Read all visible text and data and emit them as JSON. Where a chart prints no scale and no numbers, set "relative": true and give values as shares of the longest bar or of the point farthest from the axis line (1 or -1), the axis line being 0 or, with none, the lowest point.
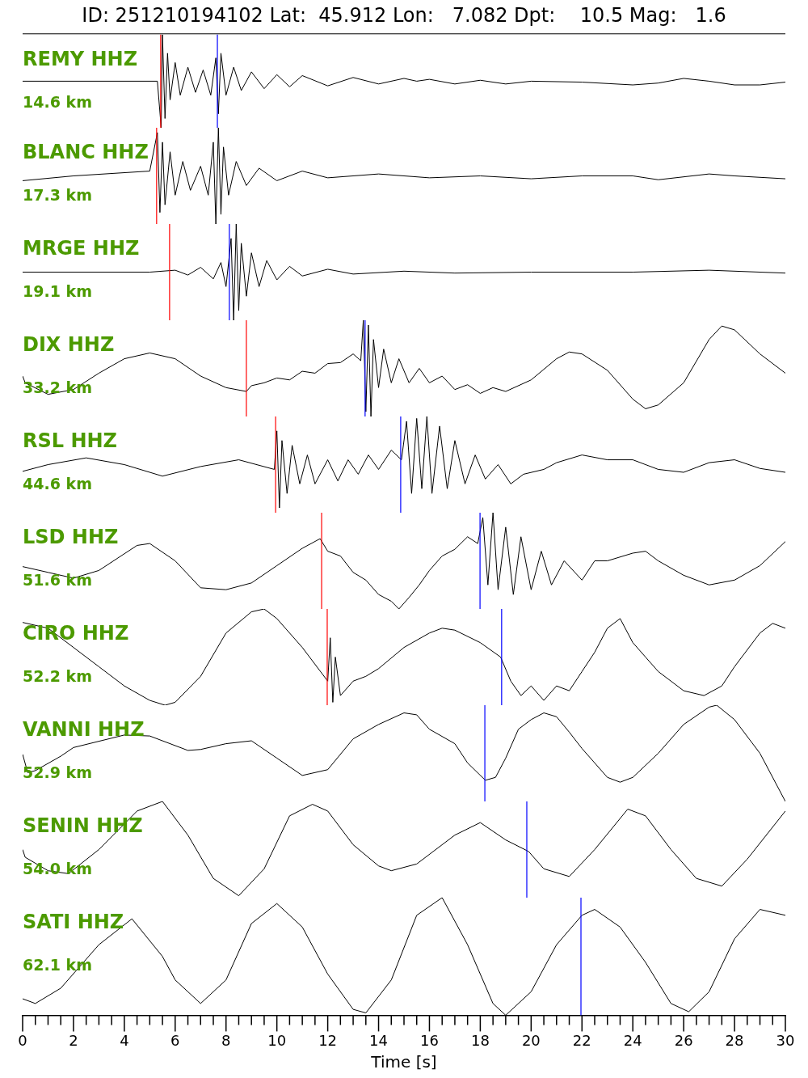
{
  "chart_data": [
    {
      "type": "line",
      "title": "ID: 251210194102 Lat:  45.912 Lon:   7.082 Dpt:    10.5 Mag:   1.6",
      "relative": true,
      "xlim": [
        0,
        30
      ],
      "tick_labels": false,
      "annotations": [
        "REMY HHZ",
        "14.6 km"
      ],
      "ref_lines": [
        {
          "axis": "x",
          "value": 5.43,
          "color": "#ff0000"
        },
        {
          "axis": "x",
          "value": 7.66,
          "color": "#0000ff"
        }
      ],
      "series": [
        {
          "color": "#000000",
          "x": [
            0,
            5.3,
            5.45,
            5.5,
            5.6,
            5.7,
            5.8,
            6.0,
            6.2,
            6.5,
            6.8,
            7.1,
            7.4,
            7.6,
            7.7,
            7.8,
            8.0,
            8.3,
            8.6,
            9.0,
            9.5,
            10,
            10.5,
            11,
            12,
            13,
            14,
            15,
            15.5,
            16,
            17,
            18,
            19,
            20,
            22,
            24,
            25,
            26,
            27,
            28,
            29,
            30
          ],
          "values": [
            0.5,
            0.5,
            0.0,
            1.0,
            0.1,
            0.8,
            0.3,
            0.7,
            0.35,
            0.65,
            0.38,
            0.62,
            0.35,
            0.75,
            0.15,
            0.8,
            0.35,
            0.65,
            0.4,
            0.6,
            0.42,
            0.57,
            0.44,
            0.56,
            0.45,
            0.54,
            0.47,
            0.53,
            0.5,
            0.52,
            0.47,
            0.51,
            0.47,
            0.5,
            0.49,
            0.46,
            0.48,
            0.53,
            0.5,
            0.46,
            0.46,
            0.49
          ]
        }
      ]
    },
    {
      "type": "line",
      "relative": true,
      "xlim": [
        0,
        30
      ],
      "tick_labels": false,
      "annotations": [
        "BLANC HHZ",
        "17.3 km"
      ],
      "ref_lines": [
        {
          "axis": "x",
          "value": 5.27,
          "color": "#ff0000"
        }
      ],
      "series": [
        {
          "color": "#000000",
          "x": [
            0,
            2,
            5,
            5.3,
            5.4,
            5.5,
            5.6,
            5.8,
            6.0,
            6.3,
            6.6,
            7.0,
            7.3,
            7.5,
            7.6,
            7.7,
            7.8,
            7.9,
            8.1,
            8.4,
            8.8,
            9.3,
            10,
            11,
            12,
            14,
            16,
            18,
            20,
            22,
            24,
            25,
            27,
            28,
            30
          ],
          "values": [
            0.45,
            0.5,
            0.55,
            0.95,
            0.12,
            0.85,
            0.2,
            0.75,
            0.3,
            0.65,
            0.35,
            0.6,
            0.3,
            0.85,
            0.0,
            1.0,
            0.1,
            0.8,
            0.3,
            0.65,
            0.4,
            0.58,
            0.45,
            0.55,
            0.48,
            0.52,
            0.48,
            0.5,
            0.47,
            0.5,
            0.5,
            0.46,
            0.52,
            0.5,
            0.47
          ]
        }
      ]
    },
    {
      "type": "line",
      "relative": true,
      "xlim": [
        0,
        30
      ],
      "tick_labels": false,
      "annotations": [
        "MRGE HHZ",
        "19.1 km"
      ],
      "ref_lines": [
        {
          "axis": "x",
          "value": 5.78,
          "color": "#ff0000"
        },
        {
          "axis": "x",
          "value": 8.13,
          "color": "#0000ff"
        }
      ],
      "series": [
        {
          "color": "#000000",
          "x": [
            0,
            5,
            6,
            6.5,
            7,
            7.5,
            7.8,
            8.0,
            8.2,
            8.3,
            8.4,
            8.5,
            8.6,
            8.8,
            9.0,
            9.3,
            9.6,
            10,
            10.5,
            11,
            12,
            13,
            15,
            17,
            20,
            24,
            27,
            30
          ],
          "values": [
            0.5,
            0.5,
            0.52,
            0.47,
            0.55,
            0.43,
            0.6,
            0.35,
            0.85,
            0.0,
            1.0,
            0.1,
            0.8,
            0.25,
            0.7,
            0.35,
            0.62,
            0.42,
            0.56,
            0.46,
            0.53,
            0.48,
            0.51,
            0.49,
            0.5,
            0.5,
            0.52,
            0.49
          ]
        }
      ]
    },
    {
      "type": "line",
      "relative": true,
      "xlim": [
        0,
        30
      ],
      "tick_labels": false,
      "annotations": [
        "DIX HHZ",
        "33.2 km"
      ],
      "ref_lines": [
        {
          "axis": "x",
          "value": 8.8,
          "color": "#ff0000"
        },
        {
          "axis": "x",
          "value": 13.47,
          "color": "#0000ff"
        }
      ],
      "series": [
        {
          "color": "#000000",
          "x": [
            0,
            0.1,
            1,
            2,
            3,
            4,
            5,
            6,
            7,
            8,
            8.8,
            9,
            9.5,
            10,
            10.5,
            11,
            11.5,
            12,
            12.5,
            13,
            13.3,
            13.4,
            13.5,
            13.6,
            13.7,
            13.8,
            14,
            14.2,
            14.5,
            14.8,
            15.2,
            15.6,
            16,
            16.5,
            17,
            17.5,
            18,
            18.5,
            19,
            20,
            21,
            21.5,
            22,
            23,
            24,
            24.5,
            25,
            26,
            27,
            27.5,
            28,
            29,
            30
          ],
          "values": [
            0.42,
            0.35,
            0.23,
            0.28,
            0.45,
            0.6,
            0.66,
            0.6,
            0.42,
            0.3,
            0.26,
            0.32,
            0.35,
            0.4,
            0.38,
            0.47,
            0.45,
            0.55,
            0.56,
            0.65,
            0.58,
            1.0,
            0.05,
            0.95,
            0.0,
            0.8,
            0.3,
            0.7,
            0.35,
            0.6,
            0.35,
            0.5,
            0.35,
            0.42,
            0.28,
            0.33,
            0.24,
            0.3,
            0.26,
            0.38,
            0.6,
            0.67,
            0.65,
            0.48,
            0.18,
            0.08,
            0.12,
            0.35,
            0.8,
            0.94,
            0.9,
            0.65,
            0.45
          ]
        }
      ]
    },
    {
      "type": "line",
      "relative": true,
      "xlim": [
        0,
        30
      ],
      "tick_labels": false,
      "annotations": [
        "RSL HHZ",
        "44.6 km"
      ],
      "ref_lines": [
        {
          "axis": "x",
          "value": 9.95,
          "color": "#ff0000"
        },
        {
          "axis": "x",
          "value": 14.87,
          "color": "#0000ff"
        }
      ],
      "series": [
        {
          "color": "#000000",
          "x": [
            0,
            1,
            2.5,
            4,
            5.5,
            7,
            8.5,
            9.9,
            10.0,
            10.1,
            10.2,
            10.4,
            10.6,
            10.9,
            11.2,
            11.5,
            12,
            12.4,
            12.8,
            13.2,
            13.6,
            14,
            14.5,
            14.9,
            15.1,
            15.3,
            15.5,
            15.7,
            15.9,
            16.1,
            16.4,
            16.7,
            17,
            17.4,
            17.8,
            18.2,
            18.7,
            19.2,
            19.7,
            20.5,
            21,
            22,
            23,
            24,
            25,
            26,
            27,
            28,
            29,
            30
          ],
          "values": [
            0.43,
            0.5,
            0.57,
            0.5,
            0.38,
            0.48,
            0.55,
            0.45,
            0.85,
            0.05,
            0.75,
            0.2,
            0.7,
            0.3,
            0.6,
            0.3,
            0.55,
            0.33,
            0.55,
            0.4,
            0.6,
            0.45,
            0.65,
            0.55,
            0.95,
            0.2,
            0.98,
            0.25,
            1.0,
            0.2,
            0.9,
            0.25,
            0.75,
            0.3,
            0.6,
            0.35,
            0.5,
            0.3,
            0.4,
            0.45,
            0.52,
            0.6,
            0.55,
            0.55,
            0.45,
            0.42,
            0.52,
            0.55,
            0.46,
            0.42
          ]
        }
      ]
    },
    {
      "type": "line",
      "relative": true,
      "xlim": [
        0,
        30
      ],
      "tick_labels": false,
      "annotations": [
        "LSD HHZ",
        "51.6 km"
      ],
      "ref_lines": [
        {
          "axis": "x",
          "value": 11.76,
          "color": "#ff0000"
        },
        {
          "axis": "x",
          "value": 17.99,
          "color": "#0000ff"
        }
      ],
      "series": [
        {
          "color": "#000000",
          "x": [
            0,
            1,
            2,
            3,
            4.5,
            5,
            6,
            7,
            8,
            9,
            10,
            11,
            11.7,
            12,
            12.5,
            13,
            13.5,
            14,
            14.5,
            14.8,
            15.2,
            15.6,
            16,
            16.5,
            17,
            17.5,
            17.9,
            18.1,
            18.3,
            18.5,
            18.7,
            19.0,
            19.3,
            19.6,
            20,
            20.4,
            20.8,
            21.3,
            22,
            22.5,
            23,
            24,
            24.5,
            25,
            26,
            27,
            28,
            29,
            30
          ],
          "values": [
            0.44,
            0.38,
            0.32,
            0.4,
            0.66,
            0.68,
            0.5,
            0.22,
            0.2,
            0.27,
            0.45,
            0.63,
            0.73,
            0.6,
            0.55,
            0.38,
            0.3,
            0.15,
            0.08,
            0.0,
            0.12,
            0.25,
            0.4,
            0.55,
            0.62,
            0.75,
            0.68,
            0.95,
            0.25,
            1.0,
            0.2,
            0.85,
            0.15,
            0.75,
            0.2,
            0.6,
            0.25,
            0.5,
            0.3,
            0.5,
            0.5,
            0.58,
            0.6,
            0.5,
            0.35,
            0.25,
            0.3,
            0.45,
            0.7
          ]
        }
      ]
    },
    {
      "type": "line",
      "relative": true,
      "xlim": [
        0,
        30
      ],
      "tick_labels": false,
      "annotations": [
        "CIRO HHZ",
        "52.2 km"
      ],
      "ref_lines": [
        {
          "axis": "x",
          "value": 11.98,
          "color": "#ff0000"
        },
        {
          "axis": "x",
          "value": 18.84,
          "color": "#0000ff"
        }
      ],
      "series": [
        {
          "color": "#000000",
          "x": [
            0,
            1,
            2,
            3,
            4,
            5,
            5.6,
            6,
            7,
            8,
            9,
            9.5,
            10,
            11,
            12,
            12.1,
            12.2,
            12.3,
            12.5,
            13,
            13.5,
            14,
            15,
            16,
            16.5,
            17,
            18,
            18.8,
            19.2,
            19.6,
            20,
            20.5,
            21,
            21.5,
            22,
            22.5,
            23,
            23.5,
            24,
            24.5,
            25,
            26,
            26.8,
            27.5,
            28,
            29,
            29.5,
            30
          ],
          "values": [
            0.86,
            0.8,
            0.6,
            0.4,
            0.2,
            0.05,
            0.0,
            0.03,
            0.3,
            0.75,
            0.97,
            1.0,
            0.9,
            0.6,
            0.25,
            0.7,
            0.03,
            0.5,
            0.1,
            0.25,
            0.3,
            0.38,
            0.6,
            0.75,
            0.8,
            0.78,
            0.65,
            0.5,
            0.25,
            0.1,
            0.2,
            0.05,
            0.2,
            0.15,
            0.35,
            0.55,
            0.8,
            0.9,
            0.65,
            0.5,
            0.35,
            0.15,
            0.1,
            0.2,
            0.4,
            0.75,
            0.85,
            0.8
          ]
        }
      ]
    },
    {
      "type": "line",
      "relative": true,
      "xlim": [
        0,
        30
      ],
      "tick_labels": false,
      "annotations": [
        "VANNI HHZ",
        "52.9 km"
      ],
      "ref_lines": [
        {
          "axis": "x",
          "value": 18.18,
          "color": "#0000ff"
        }
      ],
      "series": [
        {
          "color": "#000000",
          "x": [
            0,
            0.2,
            0.5,
            1.5,
            2,
            4,
            5,
            6.5,
            7,
            8,
            9,
            10,
            11,
            12,
            13,
            14,
            15,
            15.5,
            16,
            17,
            17.5,
            18.2,
            18.6,
            19,
            19.5,
            20,
            20.5,
            21,
            21.5,
            22,
            23,
            23.5,
            24,
            25,
            26,
            27,
            27.3,
            28,
            29,
            30
          ],
          "values": [
            0.49,
            0.3,
            0.32,
            0.47,
            0.56,
            0.69,
            0.68,
            0.53,
            0.54,
            0.6,
            0.63,
            0.45,
            0.27,
            0.33,
            0.65,
            0.8,
            0.92,
            0.9,
            0.75,
            0.6,
            0.4,
            0.22,
            0.25,
            0.45,
            0.75,
            0.85,
            0.92,
            0.88,
            0.72,
            0.55,
            0.25,
            0.2,
            0.25,
            0.5,
            0.8,
            0.98,
            1.0,
            0.85,
            0.5,
            0.0
          ]
        }
      ]
    },
    {
      "type": "line",
      "relative": true,
      "xlim": [
        0,
        30
      ],
      "tick_labels": false,
      "annotations": [
        "SENIN HHZ",
        "54.0 km"
      ],
      "ref_lines": [
        {
          "axis": "x",
          "value": 19.83,
          "color": "#0000ff"
        }
      ],
      "series": [
        {
          "color": "#000000",
          "x": [
            0,
            0.1,
            1,
            1.8,
            3,
            4.5,
            5.5,
            6.5,
            7.5,
            8.5,
            9.5,
            10.5,
            11.4,
            12,
            13,
            14,
            14.5,
            15.5,
            17,
            18,
            19,
            19.9,
            20.5,
            21.5,
            22.5,
            23.8,
            24.5,
            25.5,
            26.5,
            27.5,
            28.5,
            30
          ],
          "values": [
            0.5,
            0.42,
            0.28,
            0.25,
            0.5,
            0.9,
            1.0,
            0.65,
            0.2,
            0.02,
            0.3,
            0.85,
            0.97,
            0.9,
            0.55,
            0.33,
            0.28,
            0.35,
            0.65,
            0.78,
            0.6,
            0.48,
            0.3,
            0.22,
            0.5,
            0.92,
            0.85,
            0.5,
            0.2,
            0.12,
            0.4,
            0.9
          ]
        }
      ]
    },
    {
      "type": "line",
      "relative": true,
      "xlim": [
        0,
        30
      ],
      "xticks": [
        0,
        {
          "value": 0.5,
          "label": null
        },
        {
          "value": 1,
          "label": null
        },
        {
          "value": 1.5,
          "label": null
        },
        2,
        {
          "value": 2.5,
          "label": null
        },
        {
          "value": 3,
          "label": null
        },
        {
          "value": 3.5,
          "label": null
        },
        4,
        {
          "value": 4.5,
          "label": null
        },
        {
          "value": 5,
          "label": null
        },
        {
          "value": 5.5,
          "label": null
        },
        6,
        {
          "value": 6.5,
          "label": null
        },
        {
          "value": 7,
          "label": null
        },
        {
          "value": 7.5,
          "label": null
        },
        8,
        {
          "value": 8.5,
          "label": null
        },
        {
          "value": 9,
          "label": null
        },
        {
          "value": 9.5,
          "label": null
        },
        10,
        {
          "value": 10.5,
          "label": null
        },
        {
          "value": 11,
          "label": null
        },
        {
          "value": 11.5,
          "label": null
        },
        12,
        {
          "value": 12.5,
          "label": null
        },
        {
          "value": 13,
          "label": null
        },
        {
          "value": 13.5,
          "label": null
        },
        14,
        {
          "value": 14.5,
          "label": null
        },
        {
          "value": 15,
          "label": null
        },
        {
          "value": 15.5,
          "label": null
        },
        16,
        {
          "value": 16.5,
          "label": null
        },
        {
          "value": 17,
          "label": null
        },
        {
          "value": 17.5,
          "label": null
        },
        18,
        {
          "value": 18.5,
          "label": null
        },
        {
          "value": 19,
          "label": null
        },
        {
          "value": 19.5,
          "label": null
        },
        20,
        {
          "value": 20.5,
          "label": null
        },
        {
          "value": 21,
          "label": null
        },
        {
          "value": 21.5,
          "label": null
        },
        22,
        {
          "value": 22.5,
          "label": null
        },
        {
          "value": 23,
          "label": null
        },
        {
          "value": 23.5,
          "label": null
        },
        24,
        {
          "value": 24.5,
          "label": null
        },
        {
          "value": 25,
          "label": null
        },
        {
          "value": 25.5,
          "label": null
        },
        26,
        {
          "value": 26.5,
          "label": null
        },
        {
          "value": 27,
          "label": null
        },
        {
          "value": 27.5,
          "label": null
        },
        28,
        {
          "value": 28.5,
          "label": null
        },
        {
          "value": 29,
          "label": null
        },
        {
          "value": 29.5,
          "label": null
        },
        30
      ],
      "xlabel": "Time [s]",
      "tick_labels": "x",
      "annotations": [
        "SATI HHZ",
        "62.1 km"
      ],
      "ref_lines": [
        {
          "axis": "x",
          "value": 21.96,
          "color": "#0000ff"
        }
      ],
      "series": [
        {
          "color": "#000000",
          "x": [
            0,
            0.5,
            1.5,
            3,
            4.3,
            5.5,
            6,
            7,
            8,
            9,
            10,
            11,
            12,
            13,
            13.5,
            14.5,
            15.5,
            16.5,
            17.5,
            18.5,
            19,
            20,
            21,
            22,
            22.5,
            23.5,
            24.5,
            25.5,
            26.2,
            27,
            28,
            29,
            30
          ],
          "values": [
            0.14,
            0.1,
            0.23,
            0.6,
            0.82,
            0.5,
            0.3,
            0.1,
            0.3,
            0.78,
            0.95,
            0.75,
            0.35,
            0.05,
            0.02,
            0.3,
            0.85,
            1.0,
            0.6,
            0.1,
            0.0,
            0.2,
            0.6,
            0.85,
            0.9,
            0.75,
            0.45,
            0.1,
            0.03,
            0.2,
            0.65,
            0.9,
            0.85
          ]
        }
      ]
    }
  ]
}
